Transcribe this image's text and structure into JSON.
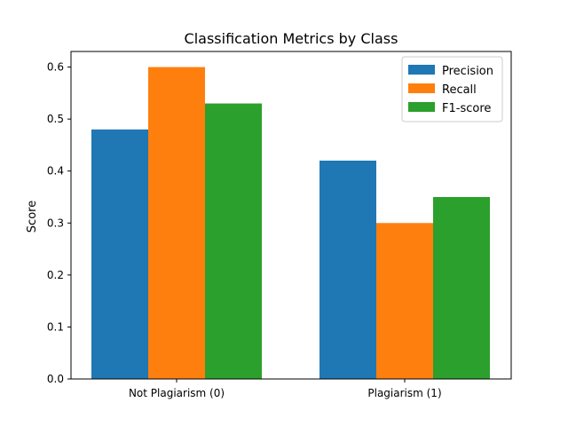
{
  "chart_data": {
    "type": "bar",
    "title": "Classification Metrics by Class",
    "xlabel": "",
    "ylabel": "Score",
    "categories": [
      "Not Plagiarism (0)",
      "Plagiarism (1)"
    ],
    "series": [
      {
        "name": "Precision",
        "values": [
          0.48,
          0.42
        ],
        "color": "#1f77b4"
      },
      {
        "name": "Recall",
        "values": [
          0.6,
          0.3
        ],
        "color": "#ff7f0e"
      },
      {
        "name": "F1-score",
        "values": [
          0.53,
          0.35
        ],
        "color": "#2ca02c"
      }
    ],
    "ylim": [
      0,
      0.63
    ],
    "yticks": [
      "0.0",
      "0.1",
      "0.2",
      "0.3",
      "0.4",
      "0.5",
      "0.6"
    ],
    "grid": false,
    "legend_position": "top-right"
  }
}
